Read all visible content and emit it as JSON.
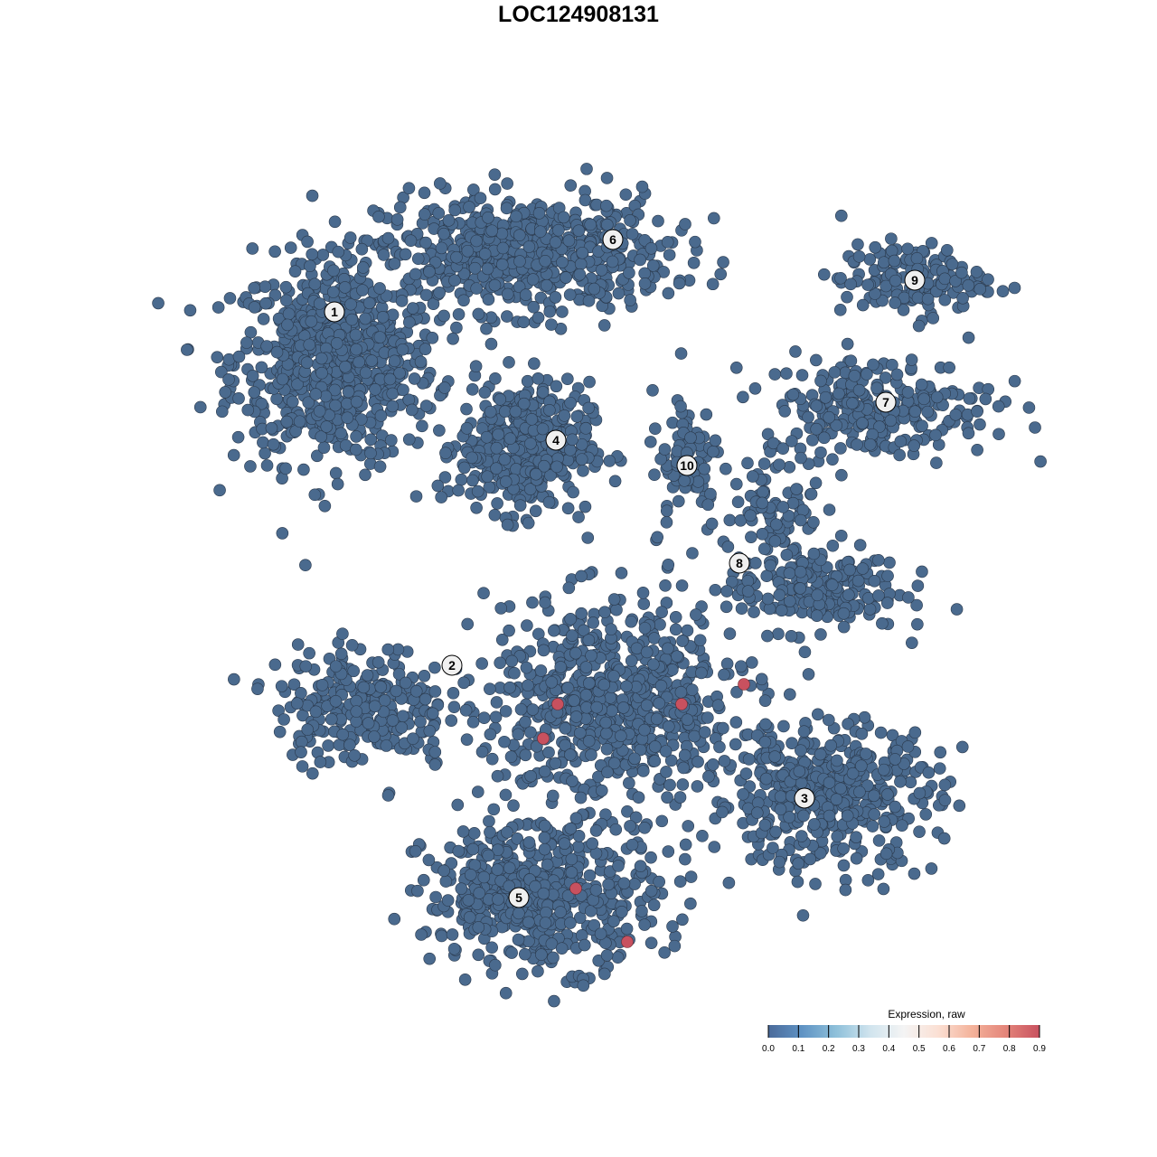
{
  "chart_data": {
    "type": "scatter",
    "title": "LOC124908131",
    "xlabel": "",
    "ylabel": "",
    "grid": false,
    "point_color_default": "#4a6a8e",
    "clusters": [
      {
        "label": "1",
        "x": -27,
        "y": 29.5
      },
      {
        "label": "2",
        "x": -14,
        "y": -9.6
      },
      {
        "label": "3",
        "x": 25,
        "y": -24.3
      },
      {
        "label": "4",
        "x": -2.5,
        "y": 15.3
      },
      {
        "label": "5",
        "x": -6.6,
        "y": -35.3
      },
      {
        "label": "6",
        "x": 3.8,
        "y": 37.5
      },
      {
        "label": "7",
        "x": 34,
        "y": 19.5
      },
      {
        "label": "8",
        "x": 17.8,
        "y": 1.7
      },
      {
        "label": "9",
        "x": 37.2,
        "y": 33
      },
      {
        "label": "10",
        "x": 12,
        "y": 12.5
      }
    ],
    "expressing_points": [
      {
        "x": -2.3,
        "y": -13.9,
        "value": 0.9
      },
      {
        "x": -3.9,
        "y": -17.7,
        "value": 0.9
      },
      {
        "x": 11.4,
        "y": -13.9,
        "value": 0.9
      },
      {
        "x": 18.3,
        "y": -11.7,
        "value": 0.9
      },
      {
        "x": -0.3,
        "y": -34.3,
        "value": 0.9
      },
      {
        "x": 5.4,
        "y": -40.2,
        "value": 0.9
      }
    ],
    "legend": {
      "title": "Expression, raw",
      "position": "bottom-right",
      "ticks": [
        "0.0",
        "0.1",
        "0.2",
        "0.3",
        "0.4",
        "0.5",
        "0.6",
        "0.7",
        "0.8",
        "0.9"
      ],
      "colors": [
        "#4a6a9a",
        "#5f93c4",
        "#8ec0da",
        "#d0e4ee",
        "#f4f4f4",
        "#fbe0d4",
        "#f4b39b",
        "#e4857a",
        "#c8515f"
      ]
    }
  }
}
